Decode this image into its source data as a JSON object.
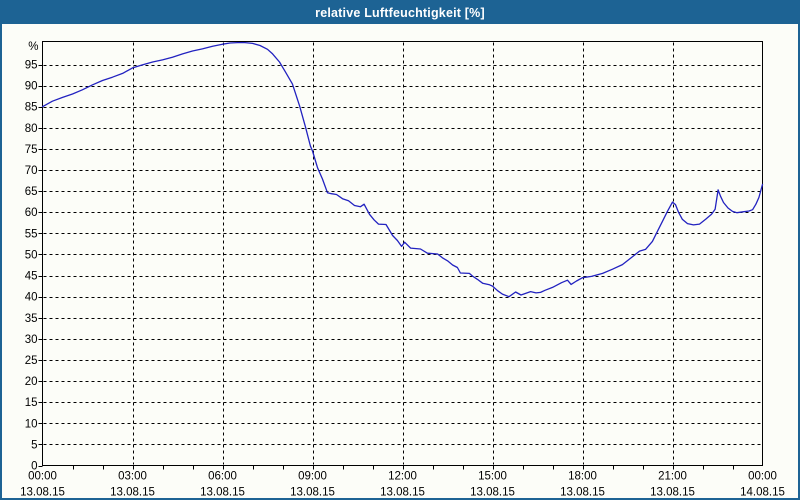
{
  "window": {
    "title": "relative Luftfeuchtigkeit [%]"
  },
  "colors": {
    "titlebar": "#1d6394",
    "border": "#1d6394",
    "background": "#fcfdf8",
    "title_text": "#ffffff",
    "grid": "#000000",
    "axis": "#000000",
    "series_line": "#2222c0"
  },
  "chart_data": {
    "type": "line",
    "title": "relative Luftfeuchtigkeit [%]",
    "ylabel": "%",
    "xlabel": "",
    "ylim": [
      0,
      100.5
    ],
    "x_hours_range": [
      0,
      24
    ],
    "grid": "dashed",
    "legend_position": "none",
    "y_ticks": [
      0,
      5,
      10,
      15,
      20,
      25,
      30,
      35,
      40,
      45,
      50,
      55,
      60,
      65,
      70,
      75,
      80,
      85,
      90,
      95
    ],
    "x_major_every_hours": 3,
    "x_minor_every_hours": 1,
    "x_labels": [
      {
        "time": "00:00",
        "date": "13.08.15"
      },
      {
        "time": "03:00",
        "date": "13.08.15"
      },
      {
        "time": "06:00",
        "date": "13.08.15"
      },
      {
        "time": "09:00",
        "date": "13.08.15"
      },
      {
        "time": "12:00",
        "date": "13.08.15"
      },
      {
        "time": "15:00",
        "date": "13.08.15"
      },
      {
        "time": "18:00",
        "date": "13.08.15"
      },
      {
        "time": "21:00",
        "date": "13.08.15"
      },
      {
        "time": "00:00",
        "date": "14.08.15"
      }
    ],
    "series": [
      {
        "name": "relative Luftfeuchtigkeit",
        "unit": "%",
        "color": "#2222c0",
        "points": [
          [
            0,
            85.0
          ],
          [
            0.33,
            86.3
          ],
          [
            0.67,
            87.2
          ],
          [
            1,
            88.0
          ],
          [
            1.33,
            89.0
          ],
          [
            1.67,
            90.2
          ],
          [
            2,
            91.2
          ],
          [
            2.33,
            92.0
          ],
          [
            2.67,
            92.9
          ],
          [
            3,
            94.2
          ],
          [
            3.33,
            94.9
          ],
          [
            3.67,
            95.6
          ],
          [
            4,
            96.1
          ],
          [
            4.33,
            96.7
          ],
          [
            4.67,
            97.5
          ],
          [
            5,
            98.2
          ],
          [
            5.33,
            98.7
          ],
          [
            5.67,
            99.3
          ],
          [
            6,
            99.8
          ],
          [
            6.25,
            100.1
          ],
          [
            6.5,
            100.2
          ],
          [
            6.75,
            100.2
          ],
          [
            7,
            100.0
          ],
          [
            7.25,
            99.5
          ],
          [
            7.5,
            98.6
          ],
          [
            7.67,
            97.5
          ],
          [
            7.9,
            95.6
          ],
          [
            8.1,
            93.2
          ],
          [
            8.33,
            90.4
          ],
          [
            8.57,
            85.2
          ],
          [
            8.77,
            80.1
          ],
          [
            8.93,
            75.7
          ],
          [
            9,
            74.5
          ],
          [
            9.17,
            70.5
          ],
          [
            9.33,
            67.9
          ],
          [
            9.5,
            64.6
          ],
          [
            9.63,
            64.4
          ],
          [
            9.8,
            64.2
          ],
          [
            10,
            63.2
          ],
          [
            10.2,
            62.7
          ],
          [
            10.4,
            61.6
          ],
          [
            10.6,
            61.3
          ],
          [
            10.72,
            61.9
          ],
          [
            10.9,
            59.5
          ],
          [
            11.05,
            58.2
          ],
          [
            11.2,
            57.2
          ],
          [
            11.45,
            57.1
          ],
          [
            11.67,
            54.5
          ],
          [
            11.83,
            53.3
          ],
          [
            11.97,
            51.9
          ],
          [
            12.07,
            52.9
          ],
          [
            12.27,
            51.5
          ],
          [
            12.6,
            51.3
          ],
          [
            12.83,
            50.3
          ],
          [
            13.17,
            50.1
          ],
          [
            13.33,
            49.2
          ],
          [
            13.5,
            48.5
          ],
          [
            13.67,
            47.5
          ],
          [
            13.83,
            46.9
          ],
          [
            13.93,
            45.6
          ],
          [
            14.23,
            45.5
          ],
          [
            14.33,
            44.9
          ],
          [
            14.5,
            44.1
          ],
          [
            14.67,
            43.2
          ],
          [
            14.9,
            42.8
          ],
          [
            15,
            42.5
          ],
          [
            15.17,
            41.4
          ],
          [
            15.33,
            40.6
          ],
          [
            15.55,
            40.0
          ],
          [
            15.77,
            41.1
          ],
          [
            15.95,
            40.4
          ],
          [
            16.27,
            41.2
          ],
          [
            16.45,
            40.9
          ],
          [
            16.6,
            41.0
          ],
          [
            16.75,
            41.5
          ],
          [
            17,
            42.2
          ],
          [
            17.3,
            43.3
          ],
          [
            17.5,
            43.9
          ],
          [
            17.62,
            42.9
          ],
          [
            17.8,
            43.7
          ],
          [
            18,
            44.5
          ],
          [
            18.3,
            44.8
          ],
          [
            18.67,
            45.5
          ],
          [
            19,
            46.5
          ],
          [
            19.33,
            47.6
          ],
          [
            19.67,
            49.5
          ],
          [
            19.9,
            50.8
          ],
          [
            20.1,
            51.2
          ],
          [
            20.33,
            53.1
          ],
          [
            20.5,
            55.5
          ],
          [
            20.67,
            57.9
          ],
          [
            20.83,
            60.2
          ],
          [
            21,
            62.4
          ],
          [
            21.1,
            61.8
          ],
          [
            21.2,
            60.0
          ],
          [
            21.33,
            58.3
          ],
          [
            21.5,
            57.3
          ],
          [
            21.7,
            57.0
          ],
          [
            21.9,
            57.2
          ],
          [
            22.1,
            58.3
          ],
          [
            22.3,
            59.5
          ],
          [
            22.42,
            60.7
          ],
          [
            22.52,
            65.3
          ],
          [
            22.6,
            63.8
          ],
          [
            22.7,
            62.3
          ],
          [
            22.85,
            61.0
          ],
          [
            23,
            60.2
          ],
          [
            23.15,
            59.9
          ],
          [
            23.35,
            60.1
          ],
          [
            23.55,
            60.3
          ],
          [
            23.67,
            60.6
          ],
          [
            23.78,
            61.9
          ],
          [
            23.88,
            63.5
          ],
          [
            24,
            66.6
          ]
        ]
      }
    ]
  }
}
